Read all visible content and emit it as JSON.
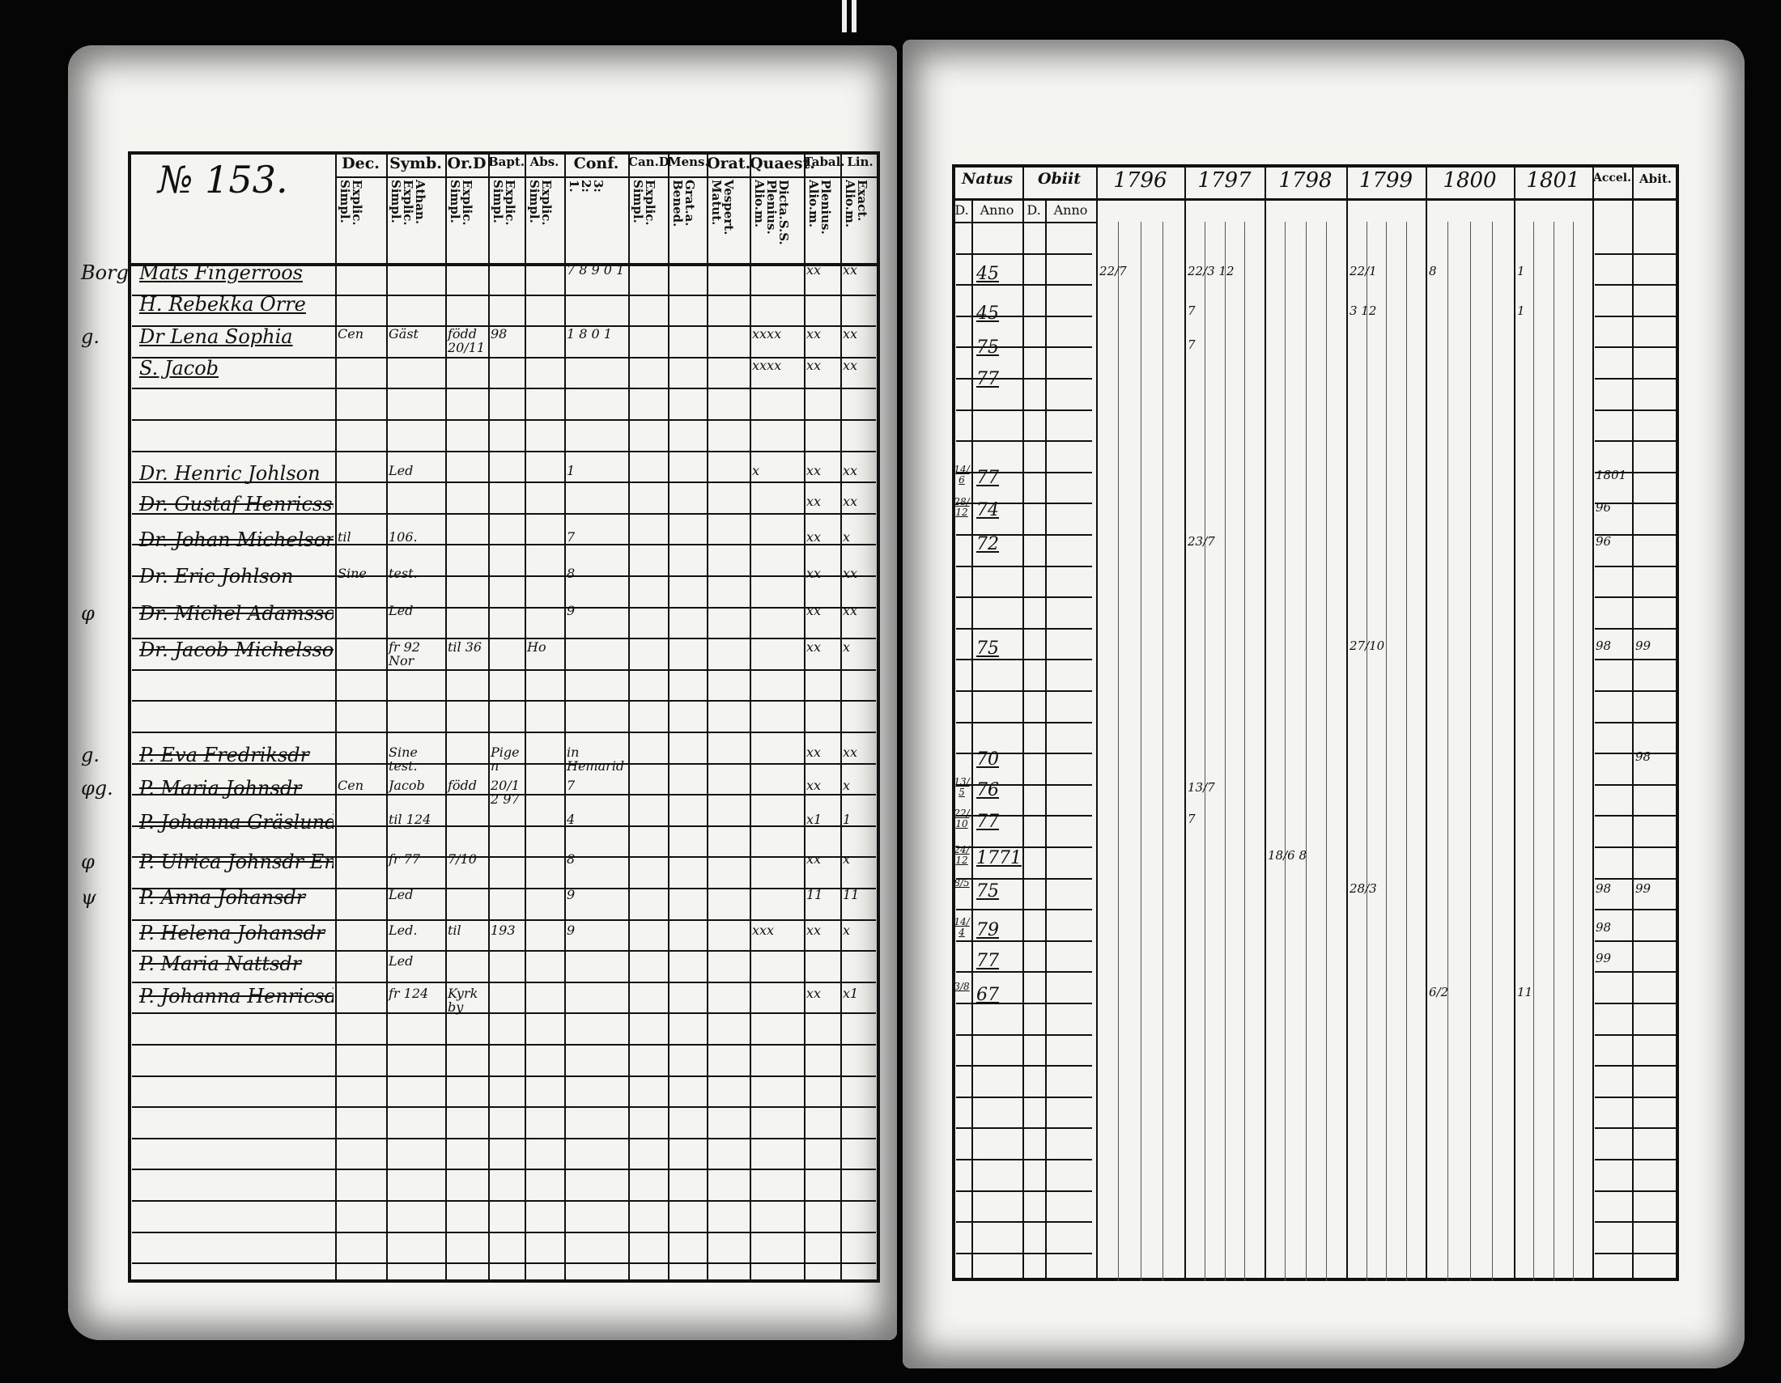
{
  "left_page": {
    "title": "№ 153.",
    "headers": [
      {
        "top": "Dec.",
        "sub": "Explic.\nSimpl."
      },
      {
        "top": "Symb.",
        "sub": "Athan.\nExplic.\nSimpl."
      },
      {
        "top": "Or.D",
        "sub": "Explic.\nSimpl."
      },
      {
        "top": "Bapt.",
        "sub": "Explic.\nSimpl."
      },
      {
        "top": "Abs.",
        "sub": "Explic.\nSimpl."
      },
      {
        "top": "Conf.",
        "sub": "3:\n2:\n1."
      },
      {
        "top": "Can.D",
        "sub": "Explic.\nSimpl."
      },
      {
        "top": "Mens.",
        "sub": "Grat.a.\nBened."
      },
      {
        "top": "Orat.",
        "sub": "Vespert.\nMatut."
      },
      {
        "top": "Quaest.",
        "sub": "Dicta.S.S.\nPlenius.\nAlio.m."
      },
      {
        "top": "Tabal.",
        "sub": "Plenius.\nAlio.m."
      },
      {
        "top": "Lin.",
        "sub": "Exact.\nAlio.m."
      }
    ],
    "rows": [
      {
        "mark": "Borg",
        "name": "Mats Fingerroos",
        "struck": false,
        "cells": {
          "5": "7 8 9 0 1",
          "10": "xx",
          "11": "xx"
        }
      },
      {
        "mark": "",
        "name": "H. Rebekka Orre",
        "struck": false,
        "cells": {}
      },
      {
        "mark": "g.",
        "name": "Dr Lena Sophia",
        "struck": false,
        "cells": {
          "0": "Cen",
          "1": "Gäst",
          "2": "född 20/11",
          "3": "98",
          "5": "1 8 0 1",
          "9": "xxxx",
          "10": "xx",
          "11": "xx"
        }
      },
      {
        "mark": "",
        "name": "S. Jacob",
        "struck": false,
        "cells": {
          "9": "xxxx",
          "10": "xx",
          "11": "xx"
        }
      },
      {
        "mark": "",
        "name": "Dr. Henric Johlson",
        "struck": false,
        "cells": {
          "1": "Led",
          "5": "1",
          "9": "x",
          "10": "xx",
          "11": "xx"
        }
      },
      {
        "mark": "",
        "name": "Dr. Gustaf Henricsson",
        "struck": true,
        "cells": {
          "10": "xx",
          "11": "xx"
        }
      },
      {
        "mark": "",
        "name": "Dr. Johan Michelson",
        "struck": true,
        "cells": {
          "0": "til",
          "1": "106.",
          "5": "7",
          "10": "xx",
          "11": "x"
        }
      },
      {
        "mark": "",
        "name": "Dr. Eric Johlson",
        "struck": true,
        "cells": {
          "0": "Sine",
          "1": "test.",
          "5": "8",
          "10": "xx",
          "11": "xx"
        }
      },
      {
        "mark": "φ",
        "name": "Dr. Michel Adamsson",
        "struck": true,
        "cells": {
          "1": "Led",
          "5": "9",
          "10": "xx",
          "11": "xx"
        }
      },
      {
        "mark": "",
        "name": "Dr. Jacob Michelsson",
        "struck": true,
        "cells": {
          "1": "fr 92 Nor",
          "2": "til 36",
          "4": "Ho",
          "10": "xx",
          "11": "x"
        }
      },
      {
        "mark": "g.",
        "name": "P. Eva Fredriksdr",
        "struck": true,
        "cells": {
          "1": "Sine test.",
          "3": "Pigen",
          "5": "in Hemarid",
          "10": "xx",
          "11": "xx"
        }
      },
      {
        "mark": "φg.",
        "name": "P. Maria Johnsdr",
        "struck": true,
        "cells": {
          "0": "Cen",
          "1": "Jacob",
          "2": "född",
          "3": "20/12 97",
          "5": "7",
          "10": "xx",
          "11": "x"
        }
      },
      {
        "mark": "",
        "name": "P. Johanna Gräslund",
        "struck": true,
        "cells": {
          "1": "til 124",
          "5": "4",
          "10": "x1",
          "11": "1"
        }
      },
      {
        "mark": "φ",
        "name": "P. Ulrica Johnsdr Engquist",
        "struck": true,
        "cells": {
          "1": "fr 77",
          "2": "7/10",
          "5": "8",
          "10": "xx",
          "11": "x"
        }
      },
      {
        "mark": "ψ",
        "name": "P. Anna Johansdr",
        "struck": true,
        "cells": {
          "1": "Led",
          "5": "9",
          "10": "11",
          "11": "11"
        }
      },
      {
        "mark": "",
        "name": "P. Helena Johansdr",
        "struck": true,
        "cells": {
          "1": "Led.",
          "2": "til",
          "3": "193",
          "5": "9",
          "9": "xxx",
          "10": "xx",
          "11": "x"
        }
      },
      {
        "mark": "",
        "name": "P. Maria Nattsdr",
        "struck": true,
        "cells": {
          "1": "Led"
        }
      },
      {
        "mark": "",
        "name": "P. Johanna Henricsdr",
        "struck": true,
        "cells": {
          "1": "fr 124",
          "2": "Kyrkby",
          "10": "xx",
          "11": "x1"
        }
      }
    ]
  },
  "right_page": {
    "headers": {
      "natus": "Natus",
      "obiit": "Obiit",
      "d": "D.",
      "anno": "Anno",
      "years": [
        "1796",
        "1797",
        "1798",
        "1799",
        "1800",
        "1801"
      ],
      "accel": "Accel.",
      "abit": "Abit."
    },
    "rows": [
      {
        "natus_d": "",
        "natus_anno": "45",
        "notes": {
          "1796": "22/7",
          "1797": "22/3 12",
          "1799": "22/1",
          "1800": "8",
          "1801": "1"
        }
      },
      {
        "natus_d": "",
        "natus_anno": "45",
        "notes": {
          "1797": "7",
          "1799": "3 12",
          "1801": "1"
        }
      },
      {
        "natus_d": "",
        "natus_anno": "75",
        "notes": {
          "1797": "7"
        }
      },
      {
        "natus_d": "",
        "natus_anno": "77",
        "notes": {}
      },
      {
        "natus_d": "14/6",
        "natus_anno": "77",
        "accel": "1801"
      },
      {
        "natus_d": "28/12",
        "natus_anno": "74",
        "accel": "96"
      },
      {
        "natus_d": "",
        "natus_anno": "72",
        "notes": {
          "1797": "23/7"
        },
        "accel": "96"
      },
      {
        "natus_d": "",
        "natus_anno": "75",
        "notes": {
          "1799": "27/10"
        },
        "accel": "98",
        "abit": "99"
      },
      {
        "natus_d": "",
        "natus_anno": "70",
        "abit": "98"
      },
      {
        "natus_d": "13/5",
        "natus_anno": "76",
        "notes": {
          "1797": "13/7"
        }
      },
      {
        "natus_d": "22/10",
        "natus_anno": "77",
        "notes": {
          "1797": "7"
        }
      },
      {
        "natus_d": "24/12",
        "natus_anno": "1771",
        "notes": {
          "1798": "18/6 8"
        }
      },
      {
        "natus_d": "8/5",
        "natus_anno": "75",
        "notes": {
          "1799": "28/3"
        },
        "accel": "98",
        "abit": "99"
      },
      {
        "natus_d": "14/4",
        "natus_anno": "79",
        "accel": "98"
      },
      {
        "natus_d": "",
        "natus_anno": "77",
        "accel": "99"
      },
      {
        "natus_d": "3/8",
        "natus_anno": "67",
        "notes": {
          "1800": "6/2",
          "1801": "11"
        }
      }
    ]
  }
}
